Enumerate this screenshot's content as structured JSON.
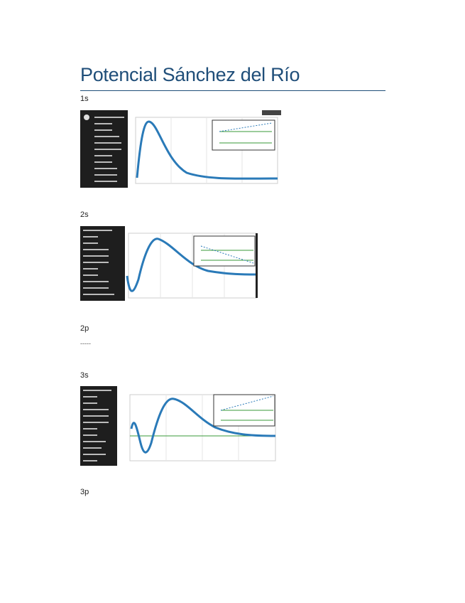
{
  "header": {
    "title": "Potencial Sánchez del Río"
  },
  "sections": [
    {
      "label": "1s"
    },
    {
      "label": "2s"
    },
    {
      "label": "2p",
      "note": "-----"
    },
    {
      "label": "3s"
    },
    {
      "label": "3p"
    }
  ]
}
